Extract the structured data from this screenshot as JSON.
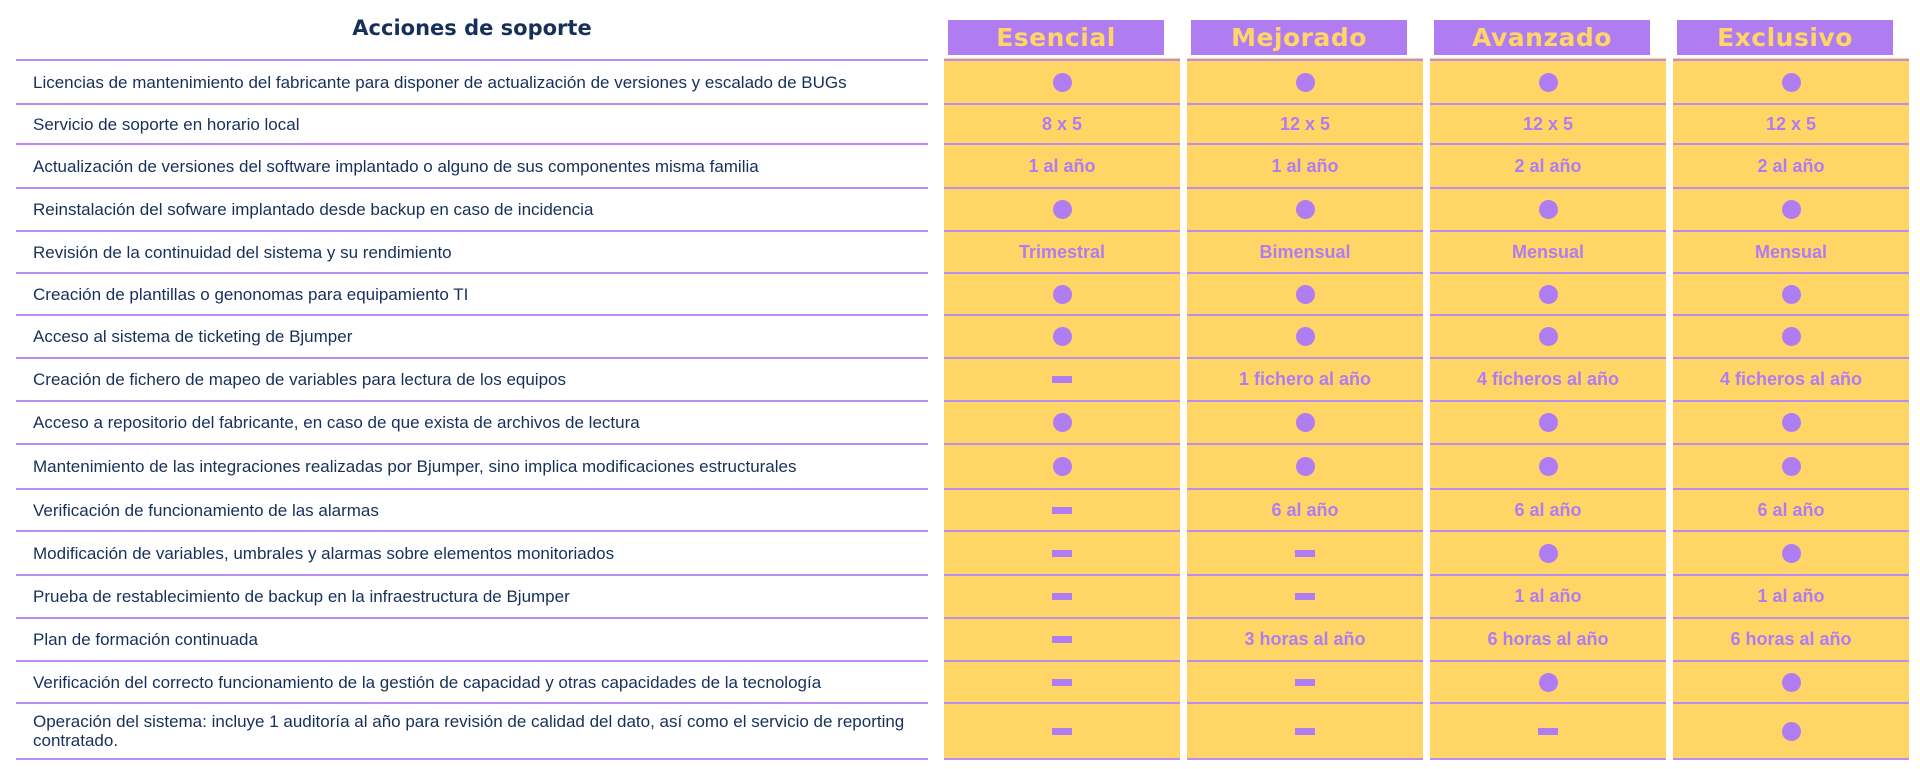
{
  "table": {
    "heading": "Acciones de soporte",
    "plans": [
      "Esencial",
      "Mejorado",
      "Avanzado",
      "Exclusivo"
    ],
    "rows": [
      {
        "label": "Licencias de mantenimiento del fabricante para disponer de actualización de versiones y escalado de BUGs",
        "values": [
          "dot",
          "dot",
          "dot",
          "dot"
        ]
      },
      {
        "label": "Servicio de soporte en horario local",
        "values": [
          "8 x 5",
          "12 x 5",
          "12 x 5",
          "12 x 5"
        ]
      },
      {
        "label": "Actualización de versiones del software implantado o alguno de sus componentes misma familia",
        "values": [
          "1 al año",
          "1 al año",
          "2 al año",
          "2 al año"
        ]
      },
      {
        "label": "Reinstalación del sofware implantado desde backup en caso de incidencia",
        "values": [
          "dot",
          "dot",
          "dot",
          "dot"
        ]
      },
      {
        "label": "Revisión de la continuidad del sistema y su rendimiento",
        "values": [
          "Trimestral",
          "Bimensual",
          "Mensual",
          "Mensual"
        ]
      },
      {
        "label": "Creación de plantillas o genonomas para equipamiento TI",
        "values": [
          "dot",
          "dot",
          "dot",
          "dot"
        ]
      },
      {
        "label": "Acceso al sistema de ticketing de Bjumper",
        "values": [
          "dot",
          "dot",
          "dot",
          "dot"
        ]
      },
      {
        "label": "Creación de fichero de mapeo de variables para lectura de los equipos",
        "values": [
          "dash",
          "1 fichero al año",
          "4 ficheros al año",
          "4 ficheros al año"
        ]
      },
      {
        "label": "Acceso a repositorio del fabricante, en caso de que exista de archivos de lectura",
        "values": [
          "dot",
          "dot",
          "dot",
          "dot"
        ]
      },
      {
        "label": "Mantenimiento de las integraciones realizadas por Bjumper, sino implica modificaciones estructurales",
        "values": [
          "dot",
          "dot",
          "dot",
          "dot"
        ]
      },
      {
        "label": "Verificación de funcionamiento de las alarmas",
        "values": [
          "dash",
          "6 al año",
          "6 al año",
          "6 al año"
        ]
      },
      {
        "label": "Modificación de variables, umbrales y alarmas sobre elementos monitoriados",
        "values": [
          "dash",
          "dash",
          "dot",
          "dot"
        ]
      },
      {
        "label": "Prueba de restablecimiento de backup en la infraestructura de Bjumper",
        "values": [
          "dash",
          "dash",
          "1 al año",
          "1 al año"
        ]
      },
      {
        "label": "Plan de formación continuada",
        "values": [
          "dash",
          "3 horas al año",
          "6 horas al año",
          "6 horas al año"
        ]
      },
      {
        "label": "Verificación del correcto funcionamiento de la gestión de capacidad y otras capacidades de la tecnología",
        "values": [
          "dash",
          "dash",
          "dot",
          "dot"
        ]
      },
      {
        "label": "Operación del sistema: incluye 1 auditoría al año para revisión de calidad del dato, así como el servicio de reporting contratado.",
        "values": [
          "dash",
          "dash",
          "dash",
          "dot"
        ]
      }
    ]
  },
  "colors": {
    "accent": "#b07cf2",
    "column_fill": "#ffd666",
    "text": "#17305a"
  },
  "icons": {
    "dot": "included-dot-icon",
    "dash": "not-included-dash-icon"
  }
}
